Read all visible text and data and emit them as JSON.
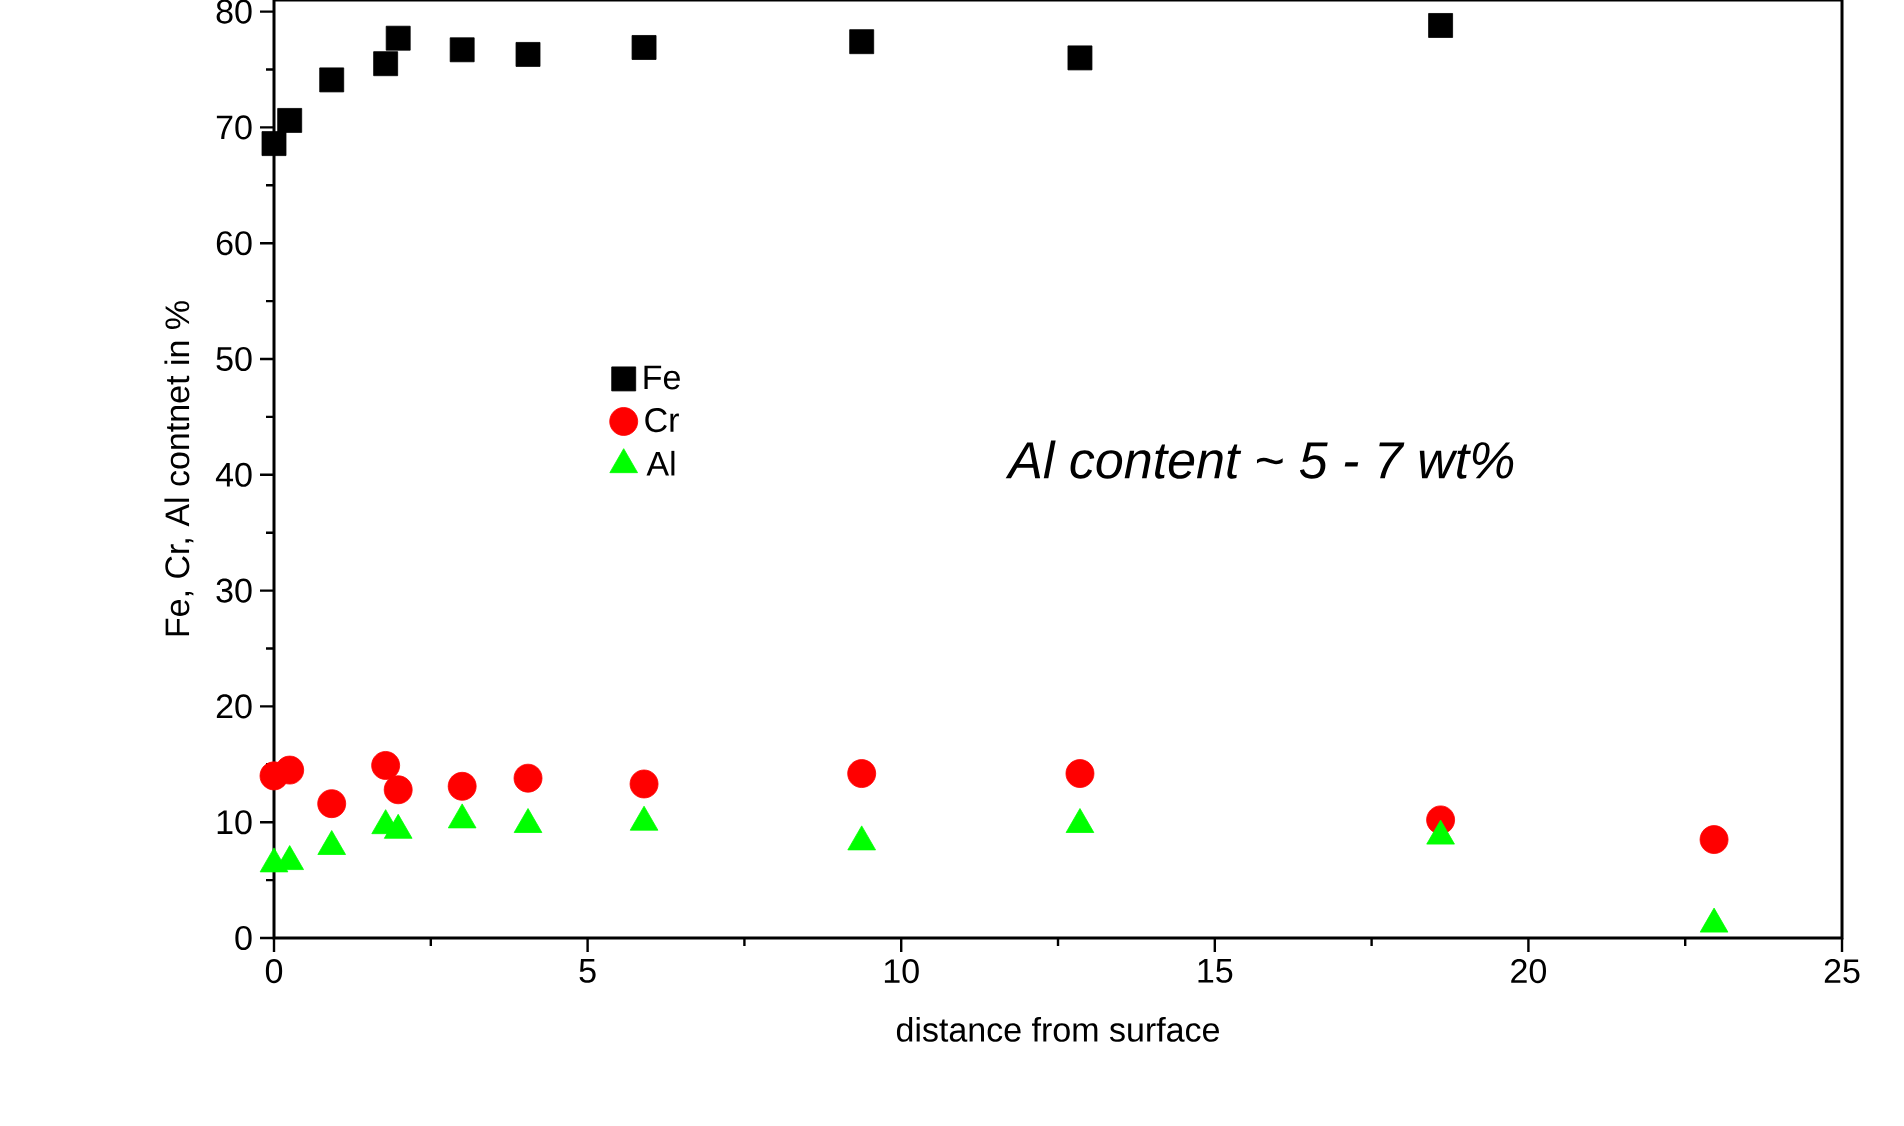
{
  "chart_data": {
    "type": "scatter",
    "xlabel": "distance from surface",
    "ylabel": "Fe, Cr, Al contnet in %",
    "xlim": [
      0,
      25
    ],
    "xticks": [
      0,
      5,
      10,
      15,
      20,
      25
    ],
    "ylim": [
      0,
      81
    ],
    "yticks": [
      0,
      10,
      20,
      30,
      40,
      50,
      60,
      70,
      80
    ],
    "legend": "left",
    "grid": false,
    "annotations": [
      "Al content ~ 5 - 7 wt%"
    ],
    "series": [
      {
        "name": "Fe",
        "color": "#000000",
        "marker": "square",
        "x": [
          0,
          0.25,
          0.92,
          1.78,
          1.98,
          3.0,
          4.05,
          5.9,
          9.37,
          12.85,
          18.6
        ],
        "values": [
          68.6,
          70.6,
          74.1,
          75.5,
          77.7,
          76.7,
          76.3,
          76.9,
          77.4,
          76.0,
          78.8
        ]
      },
      {
        "name": "Cr",
        "color": "#ff0000",
        "marker": "circle",
        "x": [
          0,
          0.25,
          0.92,
          1.78,
          1.98,
          3.0,
          4.05,
          5.9,
          9.37,
          12.85,
          18.6,
          22.96
        ],
        "values": [
          14.0,
          14.5,
          11.6,
          14.9,
          12.8,
          13.1,
          13.8,
          13.3,
          14.2,
          14.2,
          10.2,
          8.5
        ]
      },
      {
        "name": "Al",
        "color": "#00ff00",
        "marker": "triangle",
        "x": [
          0,
          0.25,
          0.92,
          1.78,
          1.98,
          3.0,
          4.05,
          5.9,
          9.37,
          12.85,
          18.6,
          22.96
        ],
        "values": [
          6.4,
          6.6,
          7.9,
          9.7,
          9.3,
          10.2,
          9.8,
          10.0,
          8.3,
          9.8,
          8.8,
          1.2
        ]
      }
    ]
  }
}
